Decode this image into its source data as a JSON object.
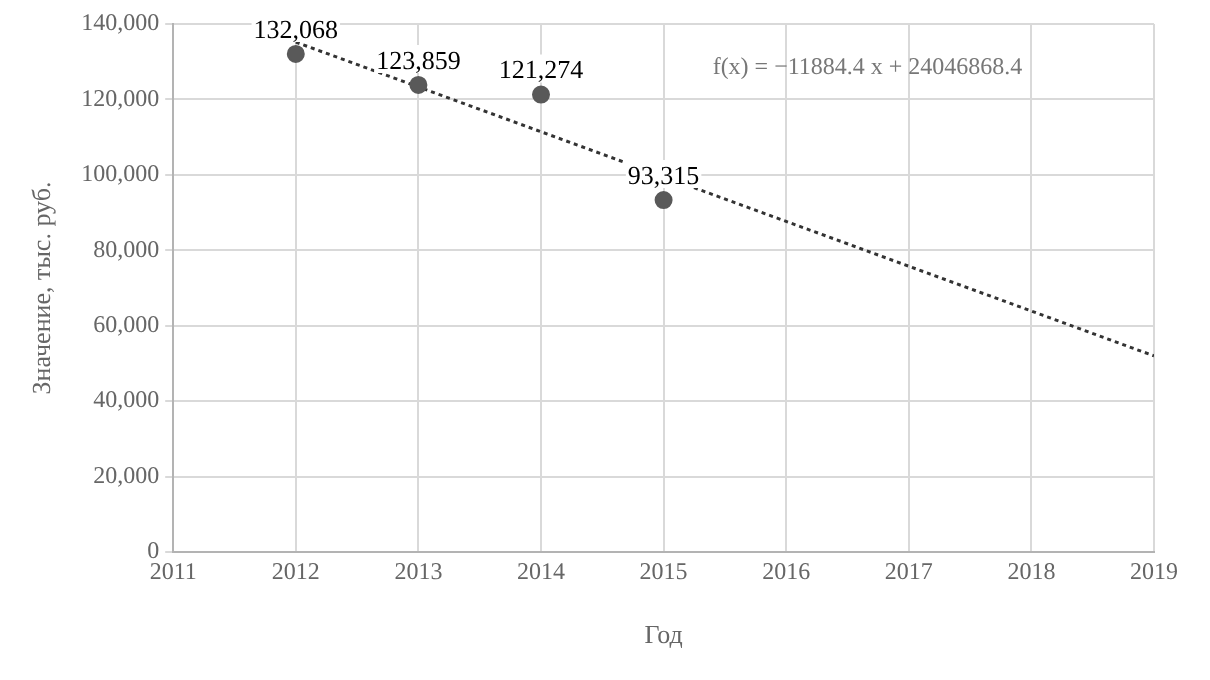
{
  "chart_data": {
    "type": "scatter",
    "xlabel": "Год",
    "ylabel": "Значение, тыс. руб.",
    "xlim": [
      2011,
      2019
    ],
    "xticks": [
      2011,
      2012,
      2013,
      2014,
      2015,
      2016,
      2017,
      2018,
      2019
    ],
    "ylim": [
      0,
      140000
    ],
    "yticks": [
      0,
      {
        "value": 20000,
        "label": "20,000"
      },
      {
        "value": 40000,
        "label": "40,000"
      },
      {
        "value": 60000,
        "label": "60,000"
      },
      {
        "value": 80000,
        "label": "80,000"
      },
      {
        "value": 100000,
        "label": "100,000"
      },
      {
        "value": 120000,
        "label": "120,000"
      },
      {
        "value": 140000,
        "label": "140,000"
      }
    ],
    "grid": true,
    "legend": false,
    "marker": "circle",
    "series": [
      {
        "color": "#595959",
        "x": [
          2012,
          2013,
          2014,
          2015
        ],
        "values": [
          132068,
          123859,
          121274,
          93315
        ],
        "value_labels": [
          "132,068",
          "123,859",
          "121,274",
          "93,315"
        ]
      },
      {
        "type": "line",
        "color": "#333333",
        "line_style": "dotted",
        "marker": "none",
        "x": [
          2012,
          2019
        ],
        "values": [
          135200,
          52000
        ]
      }
    ],
    "annotations": [
      "f(x) = −11884.4 x + 24046868.4"
    ]
  }
}
